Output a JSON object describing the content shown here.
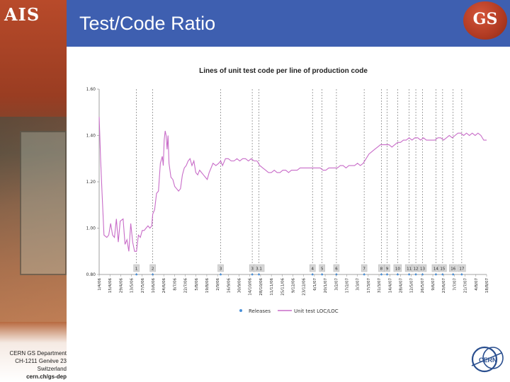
{
  "slide": {
    "title": "Test/Code Ratio",
    "left_logo": "AIS",
    "right_logo": "GS",
    "cern_logo": "CERN",
    "footer": [
      "CERN GS Department",
      "CH-1211 Genève 23",
      "Switzerland",
      "cern.ch/gs-dep"
    ],
    "colors": {
      "header": "#3e5fb0",
      "sidebar": "#9a3d22",
      "series_line": "#c86cc8",
      "release_marker": "#4a90d9"
    }
  },
  "chart_data": {
    "type": "line",
    "title": "Lines of unit test code per line of production code",
    "ylim": [
      0.8,
      1.6
    ],
    "yticks": [
      "0.80",
      "1.00",
      "1.20",
      "1.40",
      "1.60"
    ],
    "x_tick_labels": [
      "1/4/06",
      "15/4/06",
      "29/4/06",
      "13/5/06",
      "27/5/06",
      "10/6/06",
      "24/6/06",
      "8/7/06",
      "22/7/06",
      "5/8/06",
      "19/8/06",
      "2/9/06",
      "16/9/06",
      "30/9/06",
      "14/10/06",
      "28/10/06",
      "11/11/06",
      "25/11/06",
      "9/12/06",
      "23/12/06",
      "6/1/07",
      "20/1/07",
      "3/2/07",
      "17/2/07",
      "3/3/07",
      "17/3/07",
      "31/3/07",
      "14/4/07",
      "28/4/07",
      "12/5/07",
      "26/5/07",
      "9/6/07",
      "23/6/07",
      "7/7/07",
      "21/7/07",
      "4/8/07",
      "18/8/07"
    ],
    "releases": [
      {
        "label": "1",
        "date_index": 3.9
      },
      {
        "label": "2",
        "date_index": 5.6
      },
      {
        "label": "3",
        "date_index": 12.7
      },
      {
        "label": "3",
        "date_index": 16.0
      },
      {
        "label": "3.1",
        "date_index": 16.7
      },
      {
        "label": "4",
        "date_index": 22.3
      },
      {
        "label": "5",
        "date_index": 23.3
      },
      {
        "label": "6",
        "date_index": 24.8
      },
      {
        "label": "7",
        "date_index": 27.7
      },
      {
        "label": "8",
        "date_index": 29.5
      },
      {
        "label": "9",
        "date_index": 30.1
      },
      {
        "label": "10",
        "date_index": 31.2
      },
      {
        "label": "11",
        "date_index": 32.4
      },
      {
        "label": "12",
        "date_index": 33.1
      },
      {
        "label": "13",
        "date_index": 33.8
      },
      {
        "label": "14",
        "date_index": 35.2
      },
      {
        "label": "15",
        "date_index": 35.9
      },
      {
        "label": "16",
        "date_index": 37.0
      },
      {
        "label": "17",
        "date_index": 37.9
      }
    ],
    "series": [
      {
        "name": "Unit test LOC/LOC",
        "points": [
          [
            0.0,
            1.48
          ],
          [
            0.15,
            1.3
          ],
          [
            0.3,
            1.15
          ],
          [
            0.5,
            0.97
          ],
          [
            0.8,
            0.96
          ],
          [
            1.0,
            0.97
          ],
          [
            1.2,
            1.02
          ],
          [
            1.4,
            0.97
          ],
          [
            1.6,
            0.96
          ],
          [
            1.8,
            1.04
          ],
          [
            2.0,
            0.94
          ],
          [
            2.2,
            1.03
          ],
          [
            2.5,
            1.04
          ],
          [
            2.7,
            0.93
          ],
          [
            2.9,
            0.95
          ],
          [
            3.1,
            0.9
          ],
          [
            3.3,
            1.02
          ],
          [
            3.5,
            0.94
          ],
          [
            3.7,
            0.9
          ],
          [
            3.9,
            0.9
          ],
          [
            4.1,
            0.97
          ],
          [
            4.3,
            0.96
          ],
          [
            4.5,
            0.99
          ],
          [
            4.7,
            0.99
          ],
          [
            4.9,
            1.0
          ],
          [
            5.1,
            1.01
          ],
          [
            5.3,
            1.0
          ],
          [
            5.5,
            1.01
          ],
          [
            5.6,
            1.06
          ],
          [
            5.8,
            1.08
          ],
          [
            6.0,
            1.15
          ],
          [
            6.2,
            1.16
          ],
          [
            6.4,
            1.28
          ],
          [
            6.6,
            1.31
          ],
          [
            6.7,
            1.27
          ],
          [
            6.8,
            1.38
          ],
          [
            6.9,
            1.42
          ],
          [
            7.0,
            1.4
          ],
          [
            7.1,
            1.34
          ],
          [
            7.2,
            1.4
          ],
          [
            7.3,
            1.28
          ],
          [
            7.5,
            1.22
          ],
          [
            7.7,
            1.21
          ],
          [
            7.9,
            1.18
          ],
          [
            8.1,
            1.17
          ],
          [
            8.3,
            1.16
          ],
          [
            8.5,
            1.17
          ],
          [
            8.7,
            1.23
          ],
          [
            8.9,
            1.26
          ],
          [
            9.1,
            1.27
          ],
          [
            9.3,
            1.29
          ],
          [
            9.5,
            1.3
          ],
          [
            9.7,
            1.27
          ],
          [
            9.9,
            1.29
          ],
          [
            10.1,
            1.24
          ],
          [
            10.3,
            1.23
          ],
          [
            10.5,
            1.25
          ],
          [
            10.7,
            1.24
          ],
          [
            10.9,
            1.23
          ],
          [
            11.1,
            1.22
          ],
          [
            11.3,
            1.21
          ],
          [
            11.5,
            1.24
          ],
          [
            11.7,
            1.26
          ],
          [
            11.9,
            1.28
          ],
          [
            12.2,
            1.27
          ],
          [
            12.5,
            1.28
          ],
          [
            12.7,
            1.29
          ],
          [
            12.9,
            1.27
          ],
          [
            13.2,
            1.3
          ],
          [
            13.5,
            1.3
          ],
          [
            13.8,
            1.29
          ],
          [
            14.1,
            1.29
          ],
          [
            14.4,
            1.3
          ],
          [
            14.7,
            1.29
          ],
          [
            15.0,
            1.3
          ],
          [
            15.3,
            1.3
          ],
          [
            15.6,
            1.29
          ],
          [
            15.9,
            1.3
          ],
          [
            16.2,
            1.29
          ],
          [
            16.5,
            1.29
          ],
          [
            16.8,
            1.27
          ],
          [
            17.1,
            1.26
          ],
          [
            17.4,
            1.25
          ],
          [
            17.7,
            1.24
          ],
          [
            18.0,
            1.24
          ],
          [
            18.3,
            1.25
          ],
          [
            18.6,
            1.24
          ],
          [
            18.9,
            1.24
          ],
          [
            19.2,
            1.25
          ],
          [
            19.5,
            1.25
          ],
          [
            19.8,
            1.24
          ],
          [
            20.1,
            1.25
          ],
          [
            20.4,
            1.25
          ],
          [
            20.7,
            1.25
          ],
          [
            21.0,
            1.26
          ],
          [
            21.3,
            1.26
          ],
          [
            21.6,
            1.26
          ],
          [
            21.9,
            1.26
          ],
          [
            22.2,
            1.26
          ],
          [
            22.5,
            1.26
          ],
          [
            22.8,
            1.26
          ],
          [
            23.1,
            1.26
          ],
          [
            23.4,
            1.25
          ],
          [
            23.7,
            1.25
          ],
          [
            24.0,
            1.26
          ],
          [
            24.3,
            1.26
          ],
          [
            24.6,
            1.26
          ],
          [
            24.9,
            1.26
          ],
          [
            25.2,
            1.27
          ],
          [
            25.5,
            1.27
          ],
          [
            25.8,
            1.26
          ],
          [
            26.1,
            1.27
          ],
          [
            26.4,
            1.27
          ],
          [
            26.7,
            1.27
          ],
          [
            27.0,
            1.28
          ],
          [
            27.3,
            1.27
          ],
          [
            27.6,
            1.28
          ],
          [
            27.9,
            1.3
          ],
          [
            28.2,
            1.32
          ],
          [
            28.5,
            1.33
          ],
          [
            28.8,
            1.34
          ],
          [
            29.1,
            1.35
          ],
          [
            29.4,
            1.36
          ],
          [
            29.7,
            1.36
          ],
          [
            30.0,
            1.36
          ],
          [
            30.3,
            1.36
          ],
          [
            30.6,
            1.35
          ],
          [
            30.9,
            1.36
          ],
          [
            31.2,
            1.37
          ],
          [
            31.5,
            1.37
          ],
          [
            31.8,
            1.38
          ],
          [
            32.1,
            1.38
          ],
          [
            32.4,
            1.39
          ],
          [
            32.7,
            1.38
          ],
          [
            33.0,
            1.39
          ],
          [
            33.3,
            1.39
          ],
          [
            33.6,
            1.38
          ],
          [
            33.9,
            1.39
          ],
          [
            34.2,
            1.38
          ],
          [
            34.5,
            1.38
          ],
          [
            34.8,
            1.38
          ],
          [
            35.1,
            1.38
          ],
          [
            35.4,
            1.39
          ],
          [
            35.7,
            1.39
          ],
          [
            36.0,
            1.38
          ],
          [
            36.3,
            1.39
          ],
          [
            36.6,
            1.4
          ],
          [
            36.9,
            1.39
          ],
          [
            37.2,
            1.4
          ],
          [
            37.5,
            1.41
          ],
          [
            37.8,
            1.41
          ],
          [
            38.1,
            1.4
          ],
          [
            38.4,
            1.41
          ],
          [
            38.7,
            1.4
          ],
          [
            39.0,
            1.41
          ],
          [
            39.3,
            1.4
          ],
          [
            39.6,
            1.41
          ],
          [
            39.9,
            1.4
          ],
          [
            40.2,
            1.38
          ],
          [
            40.5,
            1.38
          ]
        ]
      },
      {
        "name": "Releases"
      }
    ],
    "legend_position": "bottom",
    "grid": false
  }
}
